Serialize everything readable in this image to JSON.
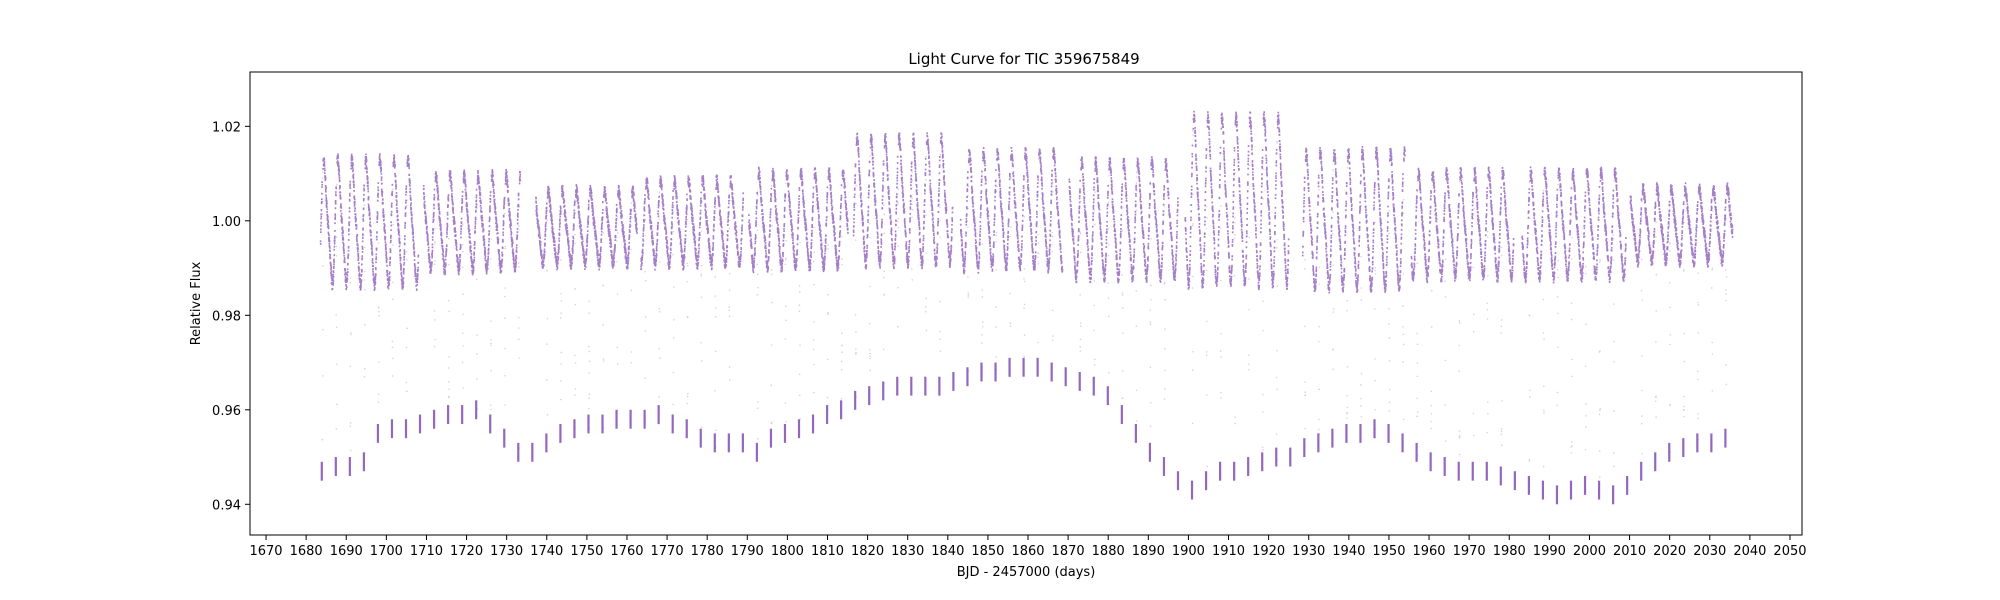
{
  "chart_data": {
    "type": "scatter",
    "title": "Light Curve for TIC 359675849",
    "xlabel": "BJD - 2457000 (days)",
    "ylabel": "Relative Flux",
    "xlim": [
      1666,
      2053
    ],
    "ylim": [
      0.9335,
      1.0315
    ],
    "xticks": [
      1670,
      1680,
      1690,
      1700,
      1710,
      1720,
      1730,
      1740,
      1750,
      1760,
      1770,
      1780,
      1790,
      1800,
      1810,
      1820,
      1830,
      1840,
      1850,
      1860,
      1870,
      1880,
      1890,
      1900,
      1910,
      1920,
      1930,
      1940,
      1950,
      1960,
      1970,
      1980,
      1990,
      2000,
      2010,
      2020,
      2030,
      2040,
      2050
    ],
    "xtick_labels": [
      "1670",
      "1680",
      "1690",
      "1700",
      "1710",
      "1720",
      "1730",
      "1740",
      "1750",
      "1760",
      "1770",
      "1780",
      "1790",
      "1800",
      "1810",
      "1820",
      "1830",
      "1840",
      "1850",
      "1860",
      "1870",
      "1880",
      "1890",
      "1900",
      "1910",
      "1920",
      "1930",
      "1940",
      "1950",
      "1960",
      "1970",
      "1980",
      "1990",
      "2000",
      "2010",
      "2020",
      "2030",
      "2040",
      "2050"
    ],
    "yticks": [
      0.94,
      0.96,
      0.98,
      1.0,
      1.02
    ],
    "ytick_labels": [
      "0.94",
      "0.96",
      "0.98",
      "1.00",
      "1.02"
    ],
    "grid": false,
    "marker_color": "#9467bd",
    "data_range": [
      1683.4,
      2035.5
    ],
    "segments": [
      {
        "x": [
          1683.4,
          1707.8
        ],
        "amplitude": 0.012,
        "baseline": 0.9995
      },
      {
        "x": [
          1709.1,
          1733.2
        ],
        "amplitude": 0.009,
        "baseline": 0.9995
      },
      {
        "x": [
          1737.1,
          1762.3
        ],
        "amplitude": 0.007,
        "baseline": 0.9985
      },
      {
        "x": [
          1763.3,
          1788.8
        ],
        "amplitude": 0.008,
        "baseline": 0.9995
      },
      {
        "x": [
          1790.2,
          1814.9
        ],
        "amplitude": 0.009,
        "baseline": 1.0
      },
      {
        "x": [
          1816.3,
          1841.0
        ],
        "amplitude": 0.012,
        "baseline": 1.004
      },
      {
        "x": [
          1843.0,
          1868.4
        ],
        "amplitude": 0.011,
        "baseline": 1.002
      },
      {
        "x": [
          1870.1,
          1897.2
        ],
        "amplitude": 0.011,
        "baseline": 1.0
      },
      {
        "x": [
          1899.0,
          1924.8
        ],
        "amplitude": 0.016,
        "baseline": 1.004
      },
      {
        "x": [
          1928.3,
          1953.8
        ],
        "amplitude": 0.013,
        "baseline": 1.0
      },
      {
        "x": [
          1955.4,
          1980.9
        ],
        "amplitude": 0.01,
        "baseline": 0.999
      },
      {
        "x": [
          1983.0,
          2008.9
        ],
        "amplitude": 0.01,
        "baseline": 0.999
      },
      {
        "x": [
          2010.0,
          2035.5
        ],
        "amplitude": 0.007,
        "baseline": 0.999
      }
    ],
    "transit_times": [
      1683.9,
      1687.4,
      1690.9,
      1694.4,
      1697.9,
      1701.4,
      1704.9,
      1708.4,
      1711.9,
      1715.4,
      1718.9,
      1722.4,
      1725.9,
      1729.4,
      1732.9,
      1736.4,
      1739.9,
      1743.4,
      1746.9,
      1750.4,
      1753.9,
      1757.4,
      1760.9,
      1764.4,
      1767.9,
      1771.4,
      1774.9,
      1778.4,
      1781.9,
      1785.4,
      1788.9,
      1792.4,
      1795.9,
      1799.4,
      1802.9,
      1806.4,
      1809.9,
      1813.4,
      1816.9,
      1820.4,
      1823.9,
      1827.4,
      1830.9,
      1834.4,
      1837.9,
      1841.4,
      1844.9,
      1848.4,
      1851.9,
      1855.4,
      1858.9,
      1862.4,
      1865.9,
      1869.4,
      1872.9,
      1876.4,
      1879.9,
      1883.4,
      1886.9,
      1890.4,
      1893.9,
      1897.4,
      1900.9,
      1904.4,
      1907.9,
      1911.4,
      1914.9,
      1918.4,
      1921.9,
      1925.4,
      1928.9,
      1932.4,
      1935.9,
      1939.4,
      1942.9,
      1946.4,
      1949.9,
      1953.4,
      1956.9,
      1960.4,
      1963.9,
      1967.4,
      1970.9,
      1974.4,
      1977.9,
      1981.4,
      1984.9,
      1988.4,
      1991.9,
      1995.4,
      1998.9,
      2002.4,
      2005.9,
      2009.4,
      2012.9,
      2016.4,
      2019.9,
      2023.4,
      2026.9,
      2030.4,
      2033.9
    ],
    "transit_depths": [
      0.945,
      0.946,
      0.946,
      0.947,
      0.953,
      0.954,
      0.954,
      0.955,
      0.956,
      0.957,
      0.957,
      0.958,
      0.955,
      0.952,
      0.949,
      0.949,
      0.951,
      0.953,
      0.954,
      0.955,
      0.955,
      0.956,
      0.956,
      0.956,
      0.957,
      0.955,
      0.954,
      0.952,
      0.951,
      0.951,
      0.951,
      0.949,
      0.952,
      0.953,
      0.954,
      0.955,
      0.957,
      0.958,
      0.96,
      0.961,
      0.962,
      0.963,
      0.963,
      0.963,
      0.963,
      0.964,
      0.965,
      0.966,
      0.966,
      0.967,
      0.967,
      0.967,
      0.966,
      0.965,
      0.964,
      0.963,
      0.961,
      0.957,
      0.953,
      0.949,
      0.946,
      0.943,
      0.941,
      0.943,
      0.945,
      0.945,
      0.946,
      0.947,
      0.948,
      0.948,
      0.95,
      0.951,
      0.952,
      0.953,
      0.953,
      0.954,
      0.953,
      0.951,
      0.949,
      0.947,
      0.946,
      0.945,
      0.945,
      0.945,
      0.944,
      0.943,
      0.942,
      0.941,
      0.94,
      0.941,
      0.942,
      0.941,
      0.94,
      0.942,
      0.945,
      0.947,
      0.949,
      0.95,
      0.951,
      0.951,
      0.952
    ]
  }
}
